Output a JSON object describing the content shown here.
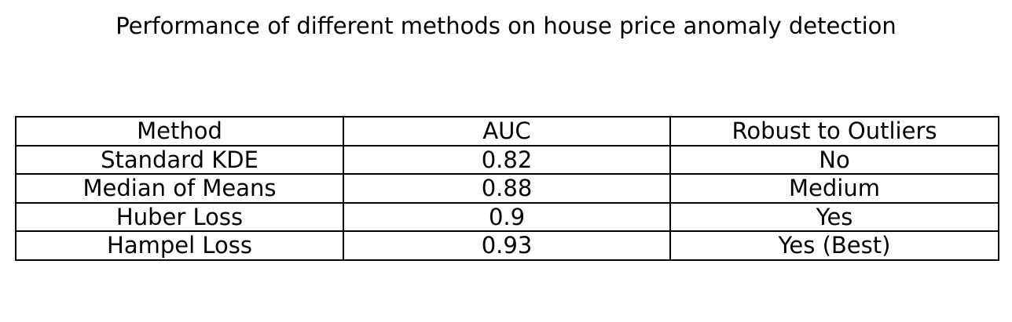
{
  "chart_data": {
    "type": "table",
    "title": "Performance of different methods on house price anomaly detection",
    "columns": [
      "Method",
      "AUC",
      "Robust to Outliers"
    ],
    "rows": [
      [
        "Standard KDE",
        "0.82",
        "No"
      ],
      [
        "Median of Means",
        "0.88",
        "Medium"
      ],
      [
        "Huber Loss",
        "0.9",
        "Yes"
      ],
      [
        "Hampel Loss",
        "0.93",
        "Yes (Best)"
      ]
    ]
  }
}
